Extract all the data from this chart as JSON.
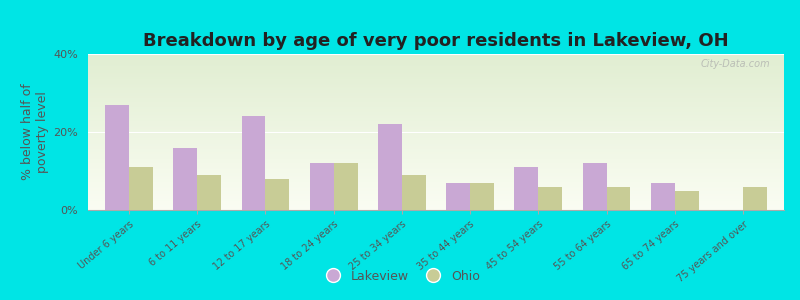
{
  "title": "Breakdown by age of very poor residents in Lakeview, OH",
  "ylabel": "% below half of\npoverty level",
  "categories": [
    "Under 6 years",
    "6 to 11 years",
    "12 to 17 years",
    "18 to 24 years",
    "25 to 34 years",
    "35 to 44 years",
    "45 to 54 years",
    "55 to 64 years",
    "65 to 74 years",
    "75 years and over"
  ],
  "lakeview_values": [
    27.0,
    16.0,
    24.0,
    12.0,
    22.0,
    7.0,
    11.0,
    12.0,
    7.0,
    0.0
  ],
  "ohio_values": [
    11.0,
    9.0,
    8.0,
    12.0,
    9.0,
    7.0,
    6.0,
    6.0,
    5.0,
    6.0
  ],
  "lakeview_color": "#c9a8d4",
  "ohio_color": "#c8cc96",
  "background_outer": "#00e5e5",
  "ylim": [
    0,
    40
  ],
  "yticks": [
    0,
    20,
    40
  ],
  "ytick_labels": [
    "0%",
    "20%",
    "40%"
  ],
  "bar_width": 0.35,
  "title_fontsize": 13,
  "axis_label_fontsize": 9,
  "tick_fontsize": 8,
  "legend_fontsize": 9,
  "watermark_text": "City-Data.com"
}
